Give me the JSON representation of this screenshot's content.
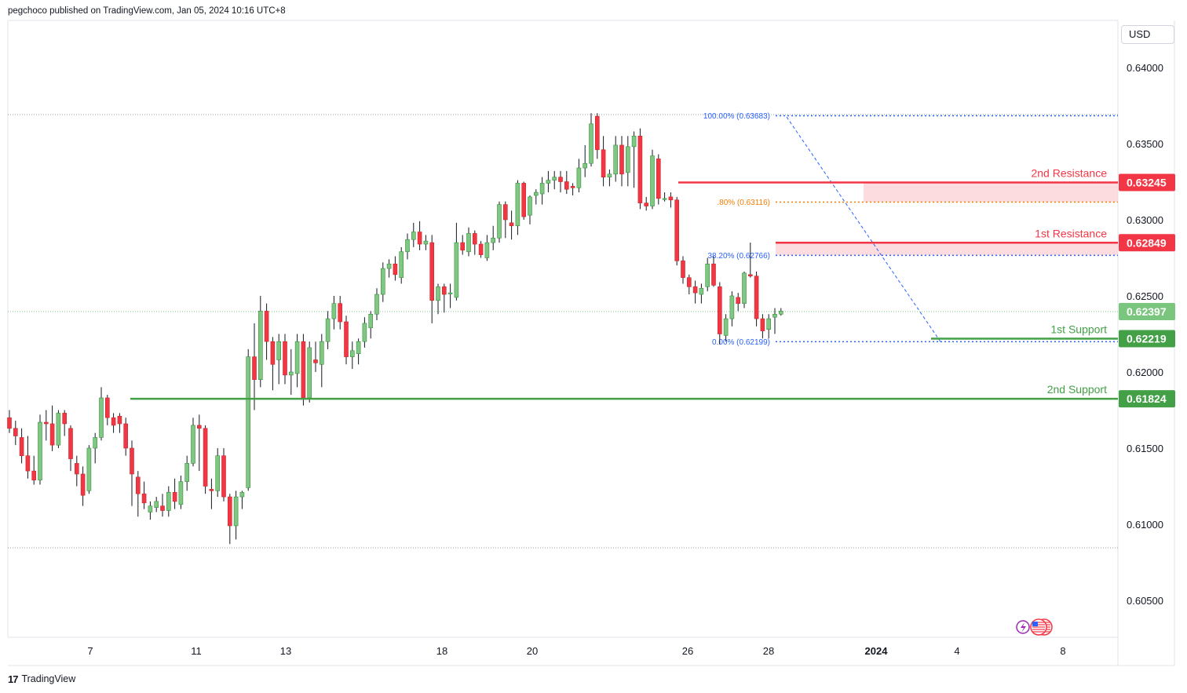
{
  "header": {
    "text": "pegchoco published on TradingView.com, Jan 05, 2024 10:16 UTC+8"
  },
  "currency": "USD",
  "footer": {
    "brand": "TradingView",
    "logo": "17"
  },
  "colors": {
    "up": "#81c784",
    "down": "#f23645",
    "resistance": "#f23645",
    "support": "#43a047",
    "fib": "#2962ff",
    "fib_mid": "#f57c00",
    "last_price": "#7bc67f"
  },
  "chart_data": {
    "type": "candlestick",
    "title": "",
    "xlabel": "",
    "ylabel": "",
    "ylim": [
      0.6022,
      0.6422
    ],
    "x_ticks": [
      "7",
      "11",
      "13",
      "18",
      "20",
      "26",
      "28",
      "2024",
      "4",
      "8"
    ],
    "y_ticks": [
      "0.64000",
      "0.63500",
      "0.63000",
      "0.62500",
      "0.62000",
      "0.61500",
      "0.61000",
      "0.60500"
    ],
    "last_price": "0.62397",
    "levels": [
      {
        "name": "2nd Resistance",
        "value": "0.63245",
        "kind": "resistance"
      },
      {
        "name": "1st Resistance",
        "value": "0.62849",
        "kind": "resistance"
      },
      {
        "name": "1st Support",
        "value": "0.62219",
        "kind": "support"
      },
      {
        "name": "2nd Support",
        "value": "0.61824",
        "kind": "support"
      }
    ],
    "fibonacci": [
      {
        "label": "100.00% (0.63683)",
        "value": 0.63683
      },
      {
        "label": ".80% (0.63116)",
        "value": 0.63116
      },
      {
        "label": "38.20% (0.62766)",
        "value": 0.62766
      },
      {
        "label": "0.00% (0.62199)",
        "value": 0.62199
      }
    ],
    "candles": [
      [
        0.617,
        0.6175,
        0.616,
        0.6163
      ],
      [
        0.6163,
        0.6168,
        0.6152,
        0.6158
      ],
      [
        0.6157,
        0.6163,
        0.614,
        0.6145
      ],
      [
        0.6145,
        0.6158,
        0.613,
        0.6135
      ],
      [
        0.6135,
        0.6145,
        0.6126,
        0.6129
      ],
      [
        0.6129,
        0.6172,
        0.6126,
        0.6167
      ],
      [
        0.6167,
        0.6175,
        0.6155,
        0.6166
      ],
      [
        0.6166,
        0.6178,
        0.6148,
        0.6152
      ],
      [
        0.6152,
        0.6175,
        0.615,
        0.6173
      ],
      [
        0.6173,
        0.6175,
        0.6158,
        0.6166
      ],
      [
        0.6163,
        0.6165,
        0.6135,
        0.6143
      ],
      [
        0.614,
        0.6145,
        0.6125,
        0.6133
      ],
      [
        0.6133,
        0.6138,
        0.6112,
        0.6119
      ],
      [
        0.6122,
        0.6152,
        0.612,
        0.615
      ],
      [
        0.615,
        0.616,
        0.614,
        0.6157
      ],
      [
        0.6157,
        0.619,
        0.6155,
        0.6183
      ],
      [
        0.6183,
        0.6185,
        0.6165,
        0.617
      ],
      [
        0.617,
        0.6173,
        0.616,
        0.6165
      ],
      [
        0.6171,
        0.6173,
        0.616,
        0.6166
      ],
      [
        0.6166,
        0.617,
        0.6145,
        0.615
      ],
      [
        0.615,
        0.6155,
        0.6112,
        0.6133
      ],
      [
        0.6131,
        0.6135,
        0.6105,
        0.612
      ],
      [
        0.612,
        0.6128,
        0.611,
        0.6114
      ],
      [
        0.6108,
        0.6115,
        0.6103,
        0.6112
      ],
      [
        0.6111,
        0.6118,
        0.6108,
        0.6115
      ],
      [
        0.6112,
        0.612,
        0.6105,
        0.6109
      ],
      [
        0.6109,
        0.6125,
        0.6105,
        0.6121
      ],
      [
        0.6121,
        0.613,
        0.611,
        0.6115
      ],
      [
        0.6113,
        0.6132,
        0.611,
        0.6128
      ],
      [
        0.6128,
        0.6145,
        0.6122,
        0.614
      ],
      [
        0.614,
        0.617,
        0.6138,
        0.6165
      ],
      [
        0.6165,
        0.6172,
        0.6135,
        0.6163
      ],
      [
        0.6163,
        0.6165,
        0.612,
        0.6125
      ],
      [
        0.6123,
        0.613,
        0.611,
        0.6122
      ],
      [
        0.6122,
        0.615,
        0.6118,
        0.6145
      ],
      [
        0.6145,
        0.615,
        0.6115,
        0.6118
      ],
      [
        0.6118,
        0.612,
        0.6087,
        0.6099
      ],
      [
        0.6099,
        0.6122,
        0.609,
        0.6118
      ],
      [
        0.6118,
        0.6122,
        0.611,
        0.6121
      ],
      [
        0.6124,
        0.6215,
        0.6122,
        0.621
      ],
      [
        0.621,
        0.6232,
        0.6175,
        0.6195
      ],
      [
        0.6195,
        0.625,
        0.619,
        0.624
      ],
      [
        0.624,
        0.6245,
        0.6208,
        0.622
      ],
      [
        0.622,
        0.6223,
        0.6188,
        0.6205
      ],
      [
        0.6208,
        0.6225,
        0.6192,
        0.622
      ],
      [
        0.622,
        0.6225,
        0.6192,
        0.6198
      ],
      [
        0.6198,
        0.6215,
        0.6185,
        0.62
      ],
      [
        0.6199,
        0.6225,
        0.619,
        0.622
      ],
      [
        0.622,
        0.6225,
        0.6178,
        0.6183
      ],
      [
        0.6183,
        0.622,
        0.618,
        0.6216
      ],
      [
        0.6208,
        0.622,
        0.62,
        0.6206
      ],
      [
        0.6205,
        0.6225,
        0.619,
        0.622
      ],
      [
        0.622,
        0.624,
        0.6215,
        0.6235
      ],
      [
        0.6235,
        0.625,
        0.6228,
        0.6245
      ],
      [
        0.6245,
        0.625,
        0.6228,
        0.6233
      ],
      [
        0.6233,
        0.6237,
        0.6205,
        0.621
      ],
      [
        0.621,
        0.622,
        0.6202,
        0.6214
      ],
      [
        0.6212,
        0.6222,
        0.6205,
        0.622
      ],
      [
        0.622,
        0.6236,
        0.6216,
        0.6232
      ],
      [
        0.6229,
        0.624,
        0.6222,
        0.6238
      ],
      [
        0.6238,
        0.6255,
        0.6234,
        0.6251
      ],
      [
        0.6251,
        0.6272,
        0.6246,
        0.6268
      ],
      [
        0.6268,
        0.6274,
        0.6262,
        0.6271
      ],
      [
        0.6271,
        0.6276,
        0.626,
        0.6264
      ],
      [
        0.6262,
        0.6282,
        0.6258,
        0.6279
      ],
      [
        0.6279,
        0.6291,
        0.6274,
        0.6287
      ],
      [
        0.6287,
        0.6298,
        0.6282,
        0.6292
      ],
      [
        0.6292,
        0.6299,
        0.628,
        0.6284
      ],
      [
        0.6284,
        0.629,
        0.628,
        0.6286
      ],
      [
        0.6285,
        0.629,
        0.6232,
        0.6247
      ],
      [
        0.6247,
        0.6258,
        0.6238,
        0.6256
      ],
      [
        0.6256,
        0.6258,
        0.6239,
        0.6251
      ],
      [
        0.6252,
        0.6258,
        0.6242,
        0.6252
      ],
      [
        0.6249,
        0.6298,
        0.6247,
        0.6285
      ],
      [
        0.6285,
        0.629,
        0.6277,
        0.628
      ],
      [
        0.6279,
        0.6295,
        0.6276,
        0.6291
      ],
      [
        0.6291,
        0.6293,
        0.6277,
        0.6284
      ],
      [
        0.6284,
        0.6286,
        0.6275,
        0.6277
      ],
      [
        0.6275,
        0.629,
        0.6273,
        0.6285
      ],
      [
        0.6285,
        0.6296,
        0.628,
        0.6288
      ],
      [
        0.6288,
        0.6312,
        0.6285,
        0.631
      ],
      [
        0.631,
        0.6312,
        0.6288,
        0.63
      ],
      [
        0.6298,
        0.6306,
        0.6287,
        0.6296
      ],
      [
        0.6296,
        0.6326,
        0.629,
        0.6324
      ],
      [
        0.6324,
        0.6325,
        0.63,
        0.6302
      ],
      [
        0.6303,
        0.6316,
        0.6297,
        0.6315
      ],
      [
        0.6316,
        0.632,
        0.631,
        0.6318
      ],
      [
        0.6317,
        0.6328,
        0.631,
        0.6324
      ],
      [
        0.6324,
        0.6332,
        0.6318,
        0.6326
      ],
      [
        0.6326,
        0.6332,
        0.632,
        0.6328
      ],
      [
        0.6328,
        0.6332,
        0.6318,
        0.6325
      ],
      [
        0.6325,
        0.6332,
        0.6317,
        0.632
      ],
      [
        0.6322,
        0.6324,
        0.6316,
        0.6321
      ],
      [
        0.6321,
        0.634,
        0.6318,
        0.6334
      ],
      [
        0.6334,
        0.6349,
        0.6328,
        0.6337
      ],
      [
        0.6337,
        0.637,
        0.6335,
        0.6363
      ],
      [
        0.6368,
        0.637,
        0.634,
        0.6346
      ],
      [
        0.6346,
        0.6355,
        0.6322,
        0.6328
      ],
      [
        0.6328,
        0.6333,
        0.6322,
        0.633
      ],
      [
        0.633,
        0.6355,
        0.6325,
        0.6349
      ],
      [
        0.6349,
        0.6355,
        0.6322,
        0.633
      ],
      [
        0.6331,
        0.6355,
        0.6322,
        0.6348
      ],
      [
        0.6348,
        0.6358,
        0.6321,
        0.6355
      ],
      [
        0.6355,
        0.636,
        0.6307,
        0.6311
      ],
      [
        0.6311,
        0.6315,
        0.6306,
        0.6309
      ],
      [
        0.6309,
        0.6346,
        0.6307,
        0.6342
      ],
      [
        0.634,
        0.6343,
        0.631,
        0.6314
      ],
      [
        0.6314,
        0.6318,
        0.6312,
        0.6314
      ],
      [
        0.6315,
        0.6318,
        0.6308,
        0.6313
      ],
      [
        0.6313,
        0.6315,
        0.627,
        0.6273
      ],
      [
        0.6273,
        0.6276,
        0.6258,
        0.6262
      ],
      [
        0.6262,
        0.6264,
        0.6251,
        0.6256
      ],
      [
        0.6256,
        0.626,
        0.6245,
        0.6252
      ],
      [
        0.6251,
        0.6258,
        0.6245,
        0.6255
      ],
      [
        0.6256,
        0.6275,
        0.6253,
        0.6271
      ],
      [
        0.6271,
        0.6276,
        0.6256,
        0.6257
      ],
      [
        0.6256,
        0.6259,
        0.6218,
        0.6225
      ],
      [
        0.6224,
        0.6238,
        0.622,
        0.6235
      ],
      [
        0.6235,
        0.6253,
        0.623,
        0.625
      ],
      [
        0.6249,
        0.6252,
        0.624,
        0.6245
      ],
      [
        0.6245,
        0.6266,
        0.6242,
        0.6265
      ],
      [
        0.6264,
        0.6285,
        0.6262,
        0.6263
      ],
      [
        0.6263,
        0.6266,
        0.623,
        0.6235
      ],
      [
        0.6235,
        0.6238,
        0.6222,
        0.6227
      ],
      [
        0.6228,
        0.6238,
        0.6222,
        0.6235
      ],
      [
        0.6236,
        0.6242,
        0.6225,
        0.6238
      ],
      [
        0.6238,
        0.6242,
        0.6237,
        0.624
      ]
    ]
  }
}
